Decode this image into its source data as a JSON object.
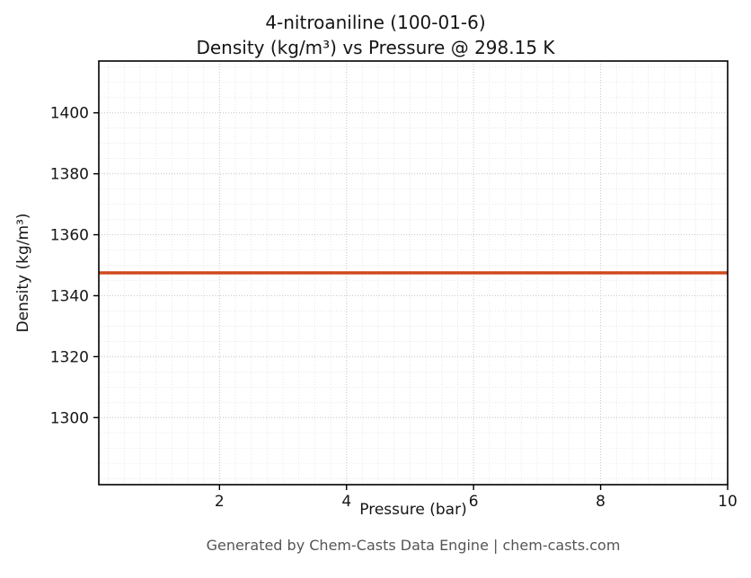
{
  "chart_data": {
    "type": "line",
    "title": "4-nitroaniline (100-01-6)",
    "subtitle": "Density (kg/m³) vs Pressure @ 298.15 K",
    "xlabel": "Pressure (bar)",
    "ylabel": "Density (kg/m³)",
    "footer": "Generated by Chem-Casts Data Engine | chem-casts.com",
    "series": [
      {
        "name": "density",
        "x": [
          0.1,
          1,
          2,
          3,
          4,
          5,
          6,
          7,
          8,
          9,
          10
        ],
        "values": [
          1347.5,
          1347.5,
          1347.5,
          1347.5,
          1347.5,
          1347.5,
          1347.5,
          1347.5,
          1347.5,
          1347.5,
          1347.5
        ]
      }
    ],
    "xlim": [
      0.1,
      10
    ],
    "ylim": [
      1278,
      1417
    ],
    "xticks": [
      2,
      4,
      6,
      8,
      10
    ],
    "yticks": [
      1300,
      1320,
      1340,
      1360,
      1380,
      1400
    ],
    "x_minor_step": 0.25,
    "y_minor_step": 5,
    "grid": true,
    "legend": "none",
    "line_color": "#d1491f",
    "line_width": 3.5,
    "axis_color": "#000000",
    "major_grid_color": "#c9c9c9",
    "minor_grid_color": "#e3e3e3"
  }
}
